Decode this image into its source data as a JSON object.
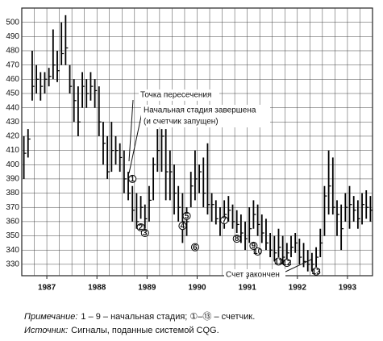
{
  "chart_data": {
    "type": "ohlc",
    "high": [
      420,
      425,
      480,
      470,
      465,
      465,
      468,
      495,
      480,
      500,
      505,
      470,
      460,
      455,
      465,
      460,
      465,
      460,
      455,
      430,
      420,
      430,
      420,
      415,
      410,
      395,
      385,
      380,
      378,
      372,
      385,
      405,
      425,
      425,
      425,
      410,
      400,
      385,
      380,
      370,
      395,
      410,
      400,
      405,
      415,
      380,
      375,
      370,
      375,
      378,
      372,
      368,
      365,
      360,
      370,
      375,
      372,
      365,
      362,
      352,
      350,
      355,
      350,
      345,
      350,
      352,
      348,
      345,
      340,
      338,
      342,
      355,
      385,
      410,
      405,
      375,
      372,
      380,
      385,
      378,
      375,
      380,
      382,
      378
    ],
    "low": [
      390,
      405,
      445,
      450,
      445,
      450,
      455,
      460,
      458,
      470,
      470,
      450,
      430,
      420,
      440,
      440,
      445,
      440,
      420,
      400,
      390,
      395,
      400,
      395,
      380,
      375,
      360,
      355,
      362,
      355,
      360,
      375,
      395,
      395,
      375,
      375,
      365,
      360,
      345,
      350,
      370,
      375,
      380,
      370,
      365,
      360,
      358,
      350,
      355,
      360,
      355,
      352,
      345,
      340,
      345,
      355,
      350,
      345,
      340,
      335,
      332,
      335,
      330,
      330,
      335,
      338,
      330,
      328,
      325,
      325,
      328,
      335,
      350,
      365,
      365,
      350,
      340,
      360,
      355,
      360,
      355,
      358,
      362,
      360
    ],
    "close": [
      408,
      418,
      455,
      460,
      455,
      460,
      462,
      470,
      466,
      478,
      482,
      455,
      445,
      430,
      455,
      450,
      455,
      452,
      430,
      415,
      395,
      410,
      410,
      405,
      390,
      380,
      368,
      360,
      370,
      362,
      375,
      400,
      410,
      420,
      395,
      395,
      380,
      370,
      360,
      360,
      385,
      390,
      395,
      380,
      372,
      372,
      362,
      360,
      365,
      368,
      360,
      358,
      352,
      348,
      355,
      365,
      358,
      352,
      345,
      340,
      338,
      342,
      335,
      338,
      342,
      345,
      335,
      332,
      330,
      330,
      335,
      345,
      378,
      385,
      370,
      365,
      355,
      370,
      372,
      368,
      362,
      372,
      370,
      368
    ],
    "xlim": [
      0,
      84
    ],
    "xticks": [
      {
        "value": 6,
        "label": "1987"
      },
      {
        "value": 18,
        "label": "1988"
      },
      {
        "value": 30,
        "label": "1989"
      },
      {
        "value": 42,
        "label": "1990"
      },
      {
        "value": 54,
        "label": "1991"
      },
      {
        "value": 66,
        "label": "1992"
      },
      {
        "value": 78,
        "label": "1993"
      }
    ],
    "xgrid_step": 3,
    "ylim": [
      322,
      510
    ],
    "yticks": [
      330,
      340,
      350,
      360,
      370,
      380,
      390,
      400,
      410,
      420,
      430,
      440,
      450,
      460,
      470,
      480,
      490,
      500
    ],
    "grid": true,
    "markers": [
      {
        "label": "1",
        "x": 26,
        "y": 390
      },
      {
        "label": "2",
        "x": 28,
        "y": 356
      },
      {
        "label": "3",
        "x": 29,
        "y": 352
      },
      {
        "label": "4",
        "x": 38,
        "y": 357
      },
      {
        "label": "5",
        "x": 39,
        "y": 364
      },
      {
        "label": "6",
        "x": 41,
        "y": 342
      },
      {
        "label": "7",
        "x": 48,
        "y": 361
      },
      {
        "label": "8",
        "x": 51,
        "y": 348
      },
      {
        "label": "9",
        "x": 55,
        "y": 343
      },
      {
        "label": "10",
        "x": 56,
        "y": 339
      },
      {
        "label": "11",
        "x": 61,
        "y": 332
      },
      {
        "label": "12",
        "x": 63,
        "y": 331
      },
      {
        "label": "13",
        "x": 70,
        "y": 325
      }
    ],
    "annotations": [
      "Точка пересечения",
      "Начальная стадия завершена",
      "(и счетчик запущен)",
      "Счет закончен"
    ],
    "notes": [
      {
        "label": "Примечание:",
        "text": "1 – 9 – начальная стадия; ①–⑬ – счетчик."
      },
      {
        "label": "Источник:",
        "text": "Сигналы, поданные системой CQG."
      }
    ]
  }
}
